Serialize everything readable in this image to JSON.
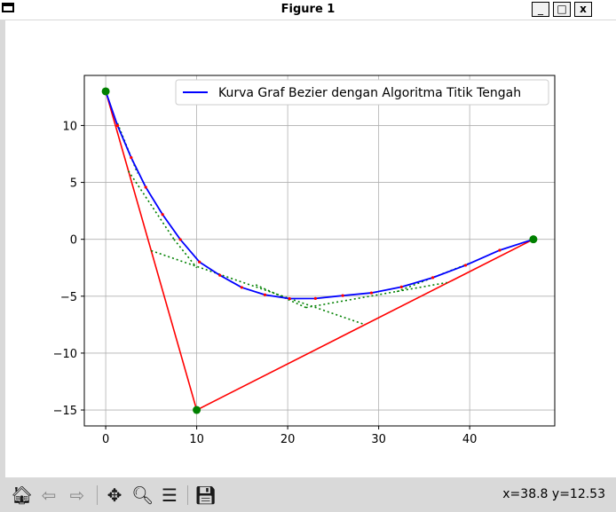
{
  "window": {
    "title": "Figure 1",
    "minimize_label": "_",
    "maximize_label": "□",
    "close_label": "x"
  },
  "toolbar": {
    "icons": [
      {
        "name": "home-icon",
        "glyph": "🏠︎"
      },
      {
        "name": "back-icon",
        "glyph": "⇦"
      },
      {
        "name": "forward-icon",
        "glyph": "⇨"
      },
      {
        "name": "pan-icon",
        "glyph": "✥"
      },
      {
        "name": "zoom-icon",
        "glyph": "🔍︎"
      },
      {
        "name": "subplots-icon",
        "glyph": "☰"
      },
      {
        "name": "save-icon",
        "glyph": "💾︎"
      }
    ],
    "coordinates": "x=38.8 y=12.53"
  },
  "chart_data": {
    "type": "line",
    "title": "",
    "xlabel": "",
    "ylabel": "",
    "xlim": [
      -2.35,
      49.35
    ],
    "ylim": [
      -16.4,
      14.4
    ],
    "xticks": [
      0,
      10,
      20,
      30,
      40
    ],
    "yticks": [
      -15,
      -10,
      -5,
      0,
      5,
      10
    ],
    "ytick_labels": [
      "−15",
      "−10",
      "−5",
      "0",
      "5",
      "10"
    ],
    "grid": true,
    "legend": {
      "placement": "top-right",
      "entries": [
        "Kurva Graf Bezier dengan Algoritma Titik Tengah"
      ]
    },
    "colors": {
      "curve": "#0000ff",
      "control": "#ff0000",
      "construction": "#008000",
      "points": "#ff0000"
    },
    "control_points": [
      [
        0,
        13
      ],
      [
        10,
        -15
      ],
      [
        47,
        0
      ]
    ],
    "series": [
      {
        "name": "Kurva Graf Bezier dengan Algoritma Titik Tengah",
        "role": "curve",
        "x": [
          0,
          1.3,
          2.8,
          4.4,
          6.25,
          8.2,
          10.3,
          12.55,
          14.95,
          17.5,
          20.2,
          23.05,
          26.05,
          29.2,
          32.5,
          35.95,
          39.55,
          43.3,
          47
        ],
        "y": [
          13,
          9.99,
          7.18,
          4.58,
          2.18,
          -0.02,
          -1.99,
          -3.16,
          -4.23,
          -4.88,
          -5.21,
          -5.2,
          -4.95,
          -4.71,
          -4.19,
          -3.37,
          -2.28,
          -0.96,
          0
        ]
      },
      {
        "role": "control-polygon",
        "x": [
          0,
          10,
          47
        ],
        "y": [
          13,
          -15,
          0
        ]
      }
    ],
    "construction_lines": [
      {
        "x": [
          5,
          28.5
        ],
        "y": [
          -1,
          -7.5
        ]
      },
      {
        "x": [
          2.5,
          7.5
        ],
        "y": [
          6,
          0
        ]
      },
      {
        "x": [
          7.5,
          10
        ],
        "y": [
          0,
          -2.5
        ]
      },
      {
        "x": [
          16.5,
          22
        ],
        "y": [
          -4,
          -6
        ]
      },
      {
        "x": [
          22,
          37.5
        ],
        "y": [
          -6,
          -3.8
        ]
      },
      {
        "x": [
          1.3,
          3.5
        ],
        "y": [
          10.2,
          5.8
        ]
      },
      {
        "x": [
          32,
          40
        ],
        "y": [
          -4.6,
          -2.1
        ]
      }
    ],
    "intermediate_points": {
      "x": [
        1.3,
        2.8,
        4.4,
        6.25,
        8.2,
        10.3,
        12.55,
        14.95,
        17.5,
        20.2,
        23.05,
        26.05,
        29.2,
        32.5,
        35.95,
        39.55,
        43.3
      ],
      "y": [
        9.99,
        7.18,
        4.58,
        2.18,
        -0.02,
        -1.99,
        -3.16,
        -4.23,
        -4.88,
        -5.21,
        -5.2,
        -4.95,
        -4.71,
        -4.19,
        -3.37,
        -2.28,
        -0.96
      ]
    }
  }
}
